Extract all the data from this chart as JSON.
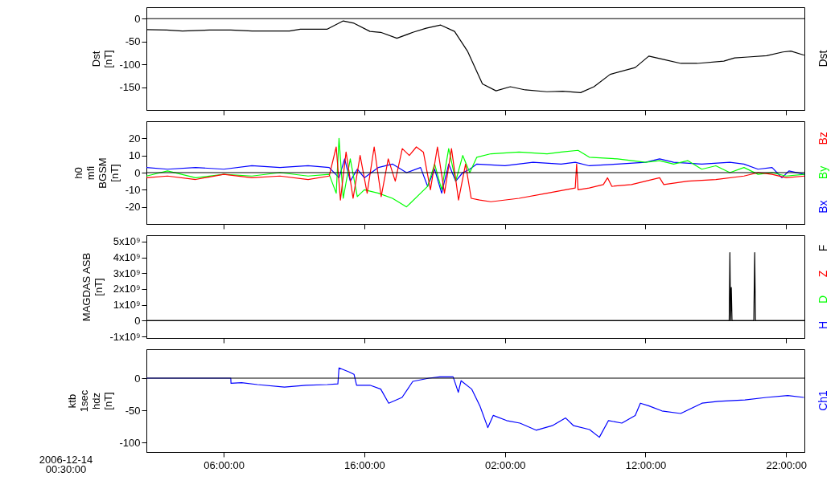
{
  "chart_data": [
    {
      "type": "line",
      "ylabel": "Dst\n[nT]",
      "xlim": [
        "2006-12-14T00:30",
        "2006-12-15T23:18"
      ],
      "ylim": [
        -200,
        25
      ],
      "yticks": [
        0,
        -50,
        -100,
        -150
      ],
      "xticks": [
        {
          "value": "2006-12-14T06:00",
          "label": null
        },
        {
          "value": "2006-12-14T16:00",
          "label": null
        },
        {
          "value": "2006-12-15T02:00",
          "label": null
        },
        {
          "value": "2006-12-15T12:00",
          "label": null
        },
        {
          "value": "2006-12-15T22:00",
          "label": null
        }
      ],
      "tick_labels": "y",
      "ref_lines": [
        {
          "axis": "y",
          "value": 0,
          "color": "#000000"
        }
      ],
      "x": [
        "2006-12-14T00:30",
        "2006-12-14T01:56",
        "2006-12-14T03:04",
        "2006-12-14T04:59",
        "2006-12-14T06:30",
        "2006-12-14T08:01",
        "2006-12-14T10:41",
        "2006-12-14T11:27",
        "2006-12-14T13:22",
        "2006-12-14T14:30",
        "2006-12-14T15:16",
        "2006-12-14T16:24",
        "2006-12-14T17:10",
        "2006-12-14T18:19",
        "2006-12-14T19:27",
        "2006-12-14T20:24",
        "2006-12-14T21:26",
        "2006-12-14T22:25",
        "2006-12-14T23:20",
        "2006-12-15T00:24",
        "2006-12-15T01:22",
        "2006-12-15T02:23",
        "2006-12-15T03:27",
        "2006-12-15T04:59",
        "2006-12-15T06:07",
        "2006-12-15T07:23",
        "2006-12-15T08:20",
        "2006-12-15T09:29",
        "2006-12-15T11:16",
        "2006-12-15T12:14",
        "2006-12-15T13:22",
        "2006-12-15T14:31",
        "2006-12-15T15:40",
        "2006-12-15T17:34",
        "2006-12-15T18:20",
        "2006-12-15T19:17",
        "2006-12-15T20:37",
        "2006-12-15T21:46",
        "2006-12-15T22:20",
        "2006-12-15T23:17"
      ],
      "series": [
        {
          "name": "Dst",
          "color": "#000000",
          "values": [
            -24,
            -25,
            -27,
            -25,
            -25,
            -27,
            -27,
            -23,
            -23,
            -5,
            -10,
            -28,
            -30,
            -43,
            -30,
            -21,
            -14,
            -28,
            -71,
            -143,
            -158,
            -149,
            -156,
            -160,
            -159,
            -162,
            -149,
            -122,
            -107,
            -82,
            -90,
            -98,
            -98,
            -93,
            -86,
            -84,
            -81,
            -73,
            -71,
            -80
          ]
        }
      ]
    },
    {
      "type": "line",
      "ylabel": "h0\nmfi\nBGSM\n[nT]",
      "xlim": [
        "2006-12-14T00:30",
        "2006-12-15T23:18"
      ],
      "ylim": [
        -30,
        30
      ],
      "yticks": [
        20,
        10,
        0,
        -10,
        -20
      ],
      "xticks": [
        {
          "value": "2006-12-14T06:00",
          "label": null
        },
        {
          "value": "2006-12-14T16:00",
          "label": null
        },
        {
          "value": "2006-12-15T02:00",
          "label": null
        },
        {
          "value": "2006-12-15T12:00",
          "label": null
        },
        {
          "value": "2006-12-15T22:00",
          "label": null
        }
      ],
      "tick_labels": "y",
      "ref_lines": [
        {
          "axis": "y",
          "value": 0,
          "color": "#000000"
        }
      ],
      "series": [
        {
          "name": "Bx",
          "color": "#0000ff",
          "x": [
            "2006-12-14T00:30",
            "2006-12-14T02:00",
            "2006-12-14T04:00",
            "2006-12-14T06:00",
            "2006-12-14T08:00",
            "2006-12-14T10:00",
            "2006-12-14T12:00",
            "2006-12-14T13:30",
            "2006-12-14T14:12",
            "2006-12-14T14:36",
            "2006-12-14T15:00",
            "2006-12-14T15:30",
            "2006-12-14T16:00",
            "2006-12-14T17:00",
            "2006-12-14T18:00",
            "2006-12-14T19:00",
            "2006-12-14T20:00",
            "2006-12-14T20:30",
            "2006-12-14T21:00",
            "2006-12-14T21:30",
            "2006-12-14T22:00",
            "2006-12-14T22:30",
            "2006-12-14T23:00",
            "2006-12-14T23:30",
            "2006-12-15T00:00",
            "2006-12-15T02:00",
            "2006-12-15T04:00",
            "2006-12-15T06:00",
            "2006-12-15T07:00",
            "2006-12-15T08:00",
            "2006-12-15T10:00",
            "2006-12-15T12:00",
            "2006-12-15T13:00",
            "2006-12-15T14:00",
            "2006-12-15T16:00",
            "2006-12-15T18:00",
            "2006-12-15T19:00",
            "2006-12-15T20:00",
            "2006-12-15T21:00",
            "2006-12-15T21:42",
            "2006-12-15T22:12",
            "2006-12-15T23:18"
          ],
          "values": [
            3,
            2,
            3,
            2,
            4,
            3,
            4,
            3,
            -3,
            8,
            -5,
            2,
            -3,
            3,
            5,
            0,
            3,
            -8,
            2,
            -12,
            5,
            -5,
            0,
            2,
            5,
            4,
            6,
            5,
            6,
            4,
            5,
            6,
            8,
            6,
            5,
            6,
            5,
            2,
            3,
            -3,
            1,
            -1
          ]
        },
        {
          "name": "By",
          "color": "#00ff00",
          "x": [
            "2006-12-14T00:30",
            "2006-12-14T02:00",
            "2006-12-14T04:00",
            "2006-12-14T06:00",
            "2006-12-14T08:00",
            "2006-12-14T10:00",
            "2006-12-14T12:00",
            "2006-12-14T13:30",
            "2006-12-14T14:00",
            "2006-12-14T14:12",
            "2006-12-14T14:30",
            "2006-12-14T15:00",
            "2006-12-14T15:30",
            "2006-12-14T16:00",
            "2006-12-14T17:00",
            "2006-12-14T18:00",
            "2006-12-14T19:00",
            "2006-12-14T20:00",
            "2006-12-14T20:30",
            "2006-12-14T21:00",
            "2006-12-14T21:30",
            "2006-12-14T22:00",
            "2006-12-14T22:30",
            "2006-12-14T23:00",
            "2006-12-14T23:30",
            "2006-12-15T00:00",
            "2006-12-15T01:00",
            "2006-12-15T03:00",
            "2006-12-15T05:00",
            "2006-12-15T06:00",
            "2006-12-15T07:12",
            "2006-12-15T08:00",
            "2006-12-15T10:00",
            "2006-12-15T12:00",
            "2006-12-15T13:00",
            "2006-12-15T14:00",
            "2006-12-15T15:00",
            "2006-12-15T16:00",
            "2006-12-15T17:00",
            "2006-12-15T18:00",
            "2006-12-15T19:00",
            "2006-12-15T20:00",
            "2006-12-15T21:00",
            "2006-12-15T22:00",
            "2006-12-15T23:18"
          ],
          "values": [
            -2,
            1,
            -3,
            -1,
            -2,
            0,
            -2,
            -1,
            -12,
            20,
            -15,
            8,
            -14,
            -10,
            -12,
            -15,
            -20,
            -12,
            -8,
            5,
            -10,
            14,
            -5,
            10,
            0,
            9,
            11,
            12,
            11,
            12,
            13,
            9,
            8,
            6,
            7,
            5,
            7,
            2,
            4,
            0,
            3,
            -1,
            0,
            -2,
            -1
          ]
        },
        {
          "name": "Bz",
          "color": "#ff0000",
          "x": [
            "2006-12-14T00:30",
            "2006-12-14T02:00",
            "2006-12-14T04:00",
            "2006-12-14T06:00",
            "2006-12-14T08:00",
            "2006-12-14T10:00",
            "2006-12-14T12:00",
            "2006-12-14T13:30",
            "2006-12-14T14:00",
            "2006-12-14T14:18",
            "2006-12-14T14:42",
            "2006-12-14T15:12",
            "2006-12-14T15:42",
            "2006-12-14T16:12",
            "2006-12-14T16:42",
            "2006-12-14T17:12",
            "2006-12-14T17:42",
            "2006-12-14T18:12",
            "2006-12-14T18:42",
            "2006-12-14T19:12",
            "2006-12-14T19:42",
            "2006-12-14T20:12",
            "2006-12-14T20:42",
            "2006-12-14T21:12",
            "2006-12-14T21:42",
            "2006-12-14T22:12",
            "2006-12-14T22:42",
            "2006-12-14T23:12",
            "2006-12-14T23:36",
            "2006-12-15T00:12",
            "2006-12-15T01:00",
            "2006-12-15T03:00",
            "2006-12-15T05:00",
            "2006-12-15T07:00",
            "2006-12-15T07:06",
            "2006-12-15T07:12",
            "2006-12-15T08:00",
            "2006-12-15T09:00",
            "2006-12-15T09:18",
            "2006-12-15T09:36",
            "2006-12-15T11:00",
            "2006-12-15T12:00",
            "2006-12-15T13:00",
            "2006-12-15T13:18",
            "2006-12-15T15:00",
            "2006-12-15T17:00",
            "2006-12-15T19:00",
            "2006-12-15T20:00",
            "2006-12-15T21:00",
            "2006-12-15T22:00",
            "2006-12-15T23:18"
          ],
          "values": [
            -3,
            -2,
            -4,
            -1,
            -3,
            -2,
            -4,
            -2,
            15,
            -16,
            12,
            -15,
            10,
            -12,
            15,
            -14,
            8,
            -5,
            14,
            10,
            15,
            12,
            -10,
            15,
            -12,
            14,
            -16,
            5,
            -15,
            -16,
            -17,
            -15,
            -12,
            -9,
            5,
            -10,
            -9,
            -7,
            -3,
            -8,
            -7,
            -5,
            -3,
            -7,
            -5,
            -4,
            -2,
            0,
            -1,
            -3,
            -2
          ]
        }
      ]
    },
    {
      "type": "line",
      "ylabel": "MAGDAS ASB\n[nT]",
      "xlim": [
        "2006-12-14T00:30",
        "2006-12-15T23:18"
      ],
      "ylim": [
        -1100000000,
        5400000000
      ],
      "yticks": [
        {
          "value": 5000000000,
          "label": "5x10⁹"
        },
        {
          "value": 4000000000,
          "label": "4x10⁹"
        },
        {
          "value": 3000000000,
          "label": "3x10⁹"
        },
        {
          "value": 2000000000,
          "label": "2x10⁹"
        },
        {
          "value": 1000000000,
          "label": "1x10⁹"
        },
        0,
        {
          "value": -1000000000,
          "label": "-1x10⁹"
        }
      ],
      "xticks": [
        {
          "value": "2006-12-14T06:00",
          "label": null
        },
        {
          "value": "2006-12-14T16:00",
          "label": null
        },
        {
          "value": "2006-12-15T02:00",
          "label": null
        },
        {
          "value": "2006-12-15T12:00",
          "label": null
        },
        {
          "value": "2006-12-15T22:00",
          "label": null
        }
      ],
      "tick_labels": "y",
      "ref_lines": [
        {
          "axis": "y",
          "value": 0,
          "color": "#000000"
        }
      ],
      "x": [
        "2006-12-14T00:30",
        "2006-12-15T17:57",
        "2006-12-15T18:00",
        "2006-12-15T18:03",
        "2006-12-15T18:06",
        "2006-12-15T18:09",
        "2006-12-15T19:42",
        "2006-12-15T19:46",
        "2006-12-15T19:49",
        "2006-12-15T23:18"
      ],
      "series": [
        {
          "name": "H",
          "color": "#0000ff",
          "values": [
            null,
            null,
            null,
            null,
            null,
            null,
            null,
            null,
            null,
            null
          ]
        },
        {
          "name": "D",
          "color": "#00ff00",
          "values": [
            null,
            null,
            null,
            null,
            null,
            null,
            null,
            null,
            null,
            null
          ]
        },
        {
          "name": "Z",
          "color": "#ff0000",
          "values": [
            null,
            null,
            null,
            null,
            null,
            null,
            null,
            null,
            null,
            null
          ]
        },
        {
          "name": "F",
          "color": "#000000",
          "values": [
            0,
            0,
            4300000000,
            0,
            2100000000,
            0,
            0,
            4300000000,
            0,
            0
          ]
        }
      ]
    },
    {
      "type": "line",
      "ylabel": "ktb\n1sec\nhdz\n[nT]",
      "xlim": [
        "2006-12-14T00:30",
        "2006-12-15T23:18"
      ],
      "ylim": [
        -115,
        45
      ],
      "yticks": [
        0,
        -50,
        -100
      ],
      "xticks": [
        {
          "value": "2006-12-14T06:00",
          "label": "06:00:00"
        },
        {
          "value": "2006-12-14T16:00",
          "label": "16:00:00"
        },
        {
          "value": "2006-12-15T02:00",
          "label": "02:00:00"
        },
        {
          "value": "2006-12-15T12:00",
          "label": "12:00:00"
        },
        {
          "value": "2006-12-15T22:00",
          "label": "22:00:00"
        }
      ],
      "ref_lines": [
        {
          "axis": "y",
          "value": 0,
          "color": "#000000"
        }
      ],
      "annotations": [
        "2006-12-14\n00:30:00"
      ],
      "x": [
        "2006-12-14T00:30",
        "2006-12-14T06:30",
        "2006-12-14T06:31",
        "2006-12-14T07:16",
        "2006-12-14T08:24",
        "2006-12-14T10:19",
        "2006-12-14T11:50",
        "2006-12-14T13:22",
        "2006-12-14T14:07",
        "2006-12-14T14:12",
        "2006-12-14T14:53",
        "2006-12-14T15:16",
        "2006-12-14T15:27",
        "2006-12-14T16:24",
        "2006-12-14T17:10",
        "2006-12-14T17:44",
        "2006-12-14T18:41",
        "2006-12-14T19:27",
        "2006-12-14T20:36",
        "2006-12-14T21:22",
        "2006-12-14T22:19",
        "2006-12-14T22:41",
        "2006-12-14T22:53",
        "2006-12-14T23:38",
        "2006-12-15T00:13",
        "2006-12-15T00:47",
        "2006-12-15T01:10",
        "2006-12-15T02:07",
        "2006-12-15T03:04",
        "2006-12-15T04:13",
        "2006-12-15T05:22",
        "2006-12-15T06:19",
        "2006-12-15T06:53",
        "2006-12-15T08:01",
        "2006-12-15T08:43",
        "2006-12-15T09:22",
        "2006-12-15T10:19",
        "2006-12-15T11:16",
        "2006-12-15T11:38",
        "2006-12-15T12:13",
        "2006-12-15T13:10",
        "2006-12-15T14:30",
        "2006-12-15T16:01",
        "2006-12-15T17:10",
        "2006-12-15T19:04",
        "2006-12-15T20:36",
        "2006-12-15T22:07",
        "2006-12-15T23:16"
      ],
      "series": [
        {
          "name": "Ch1",
          "color": "#0000ff",
          "values": [
            0,
            0,
            -8,
            -7,
            -10,
            -14,
            -11,
            -10,
            -9,
            16,
            10,
            6,
            -11,
            -11,
            -17,
            -39,
            -30,
            -5,
            0,
            2,
            2,
            -22,
            -4,
            -17,
            -43,
            -77,
            -58,
            -66,
            -70,
            -81,
            -74,
            -62,
            -74,
            -80,
            -92,
            -66,
            -70,
            -58,
            -39,
            -43,
            -51,
            -55,
            -39,
            -36,
            -34,
            -30,
            -27,
            -30
          ]
        }
      ]
    }
  ]
}
